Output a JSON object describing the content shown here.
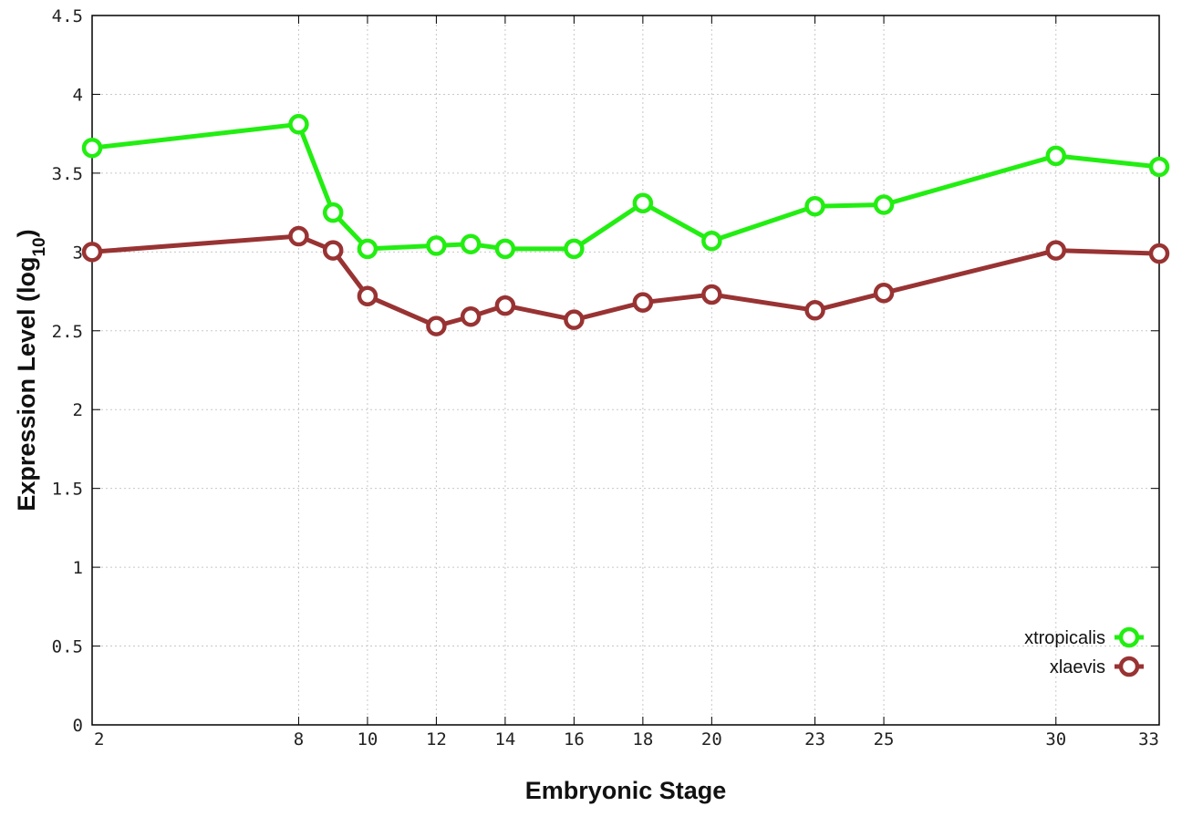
{
  "chart_data": {
    "type": "line",
    "xlabel": "Embryonic Stage",
    "ylabel_main": "Expression Level (log",
    "ylabel_sub": "10",
    "ylabel_close": ")",
    "x": [
      2,
      8,
      9,
      10,
      12,
      13,
      14,
      16,
      18,
      20,
      23,
      25,
      30,
      33
    ],
    "x_ticks": [
      2,
      8,
      10,
      12,
      14,
      16,
      18,
      20,
      23,
      25,
      30,
      33
    ],
    "y_ticks": [
      "0",
      "0.5",
      "1",
      "1.5",
      "2",
      "2.5",
      "3",
      "3.5",
      "4",
      "4.5"
    ],
    "xlim": [
      2,
      33
    ],
    "ylim": [
      0,
      4.5
    ],
    "grid": true,
    "legend_position": "bottom-right",
    "series": [
      {
        "name": "xtropicalis",
        "color": "#22ee11",
        "marker": "open-circle",
        "values": [
          3.66,
          3.81,
          3.25,
          3.02,
          3.04,
          3.05,
          3.02,
          3.02,
          3.31,
          3.07,
          3.29,
          3.3,
          3.61,
          3.54
        ]
      },
      {
        "name": "xlaevis",
        "color": "#993333",
        "marker": "open-circle",
        "values": [
          3.0,
          3.1,
          3.01,
          2.72,
          2.53,
          2.59,
          2.66,
          2.57,
          2.68,
          2.73,
          2.63,
          2.74,
          3.01,
          2.99
        ]
      }
    ]
  }
}
